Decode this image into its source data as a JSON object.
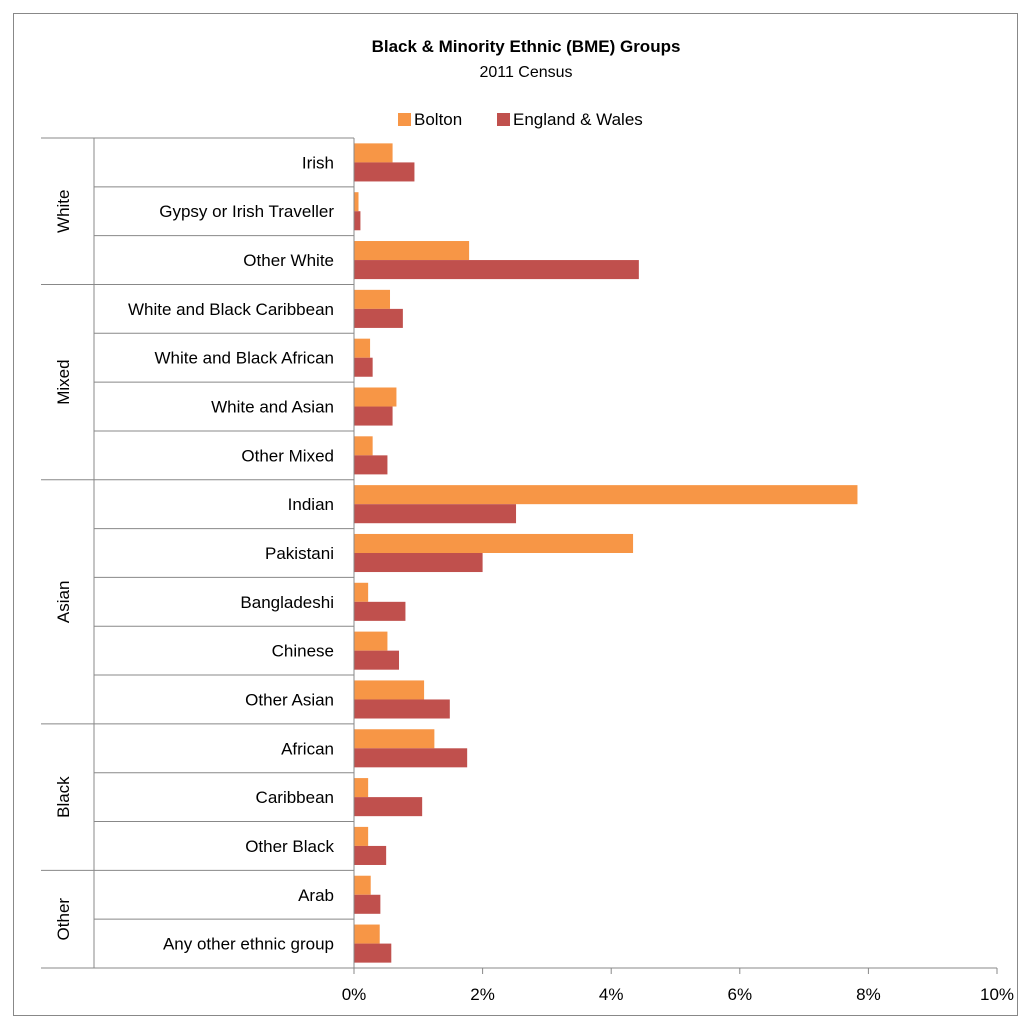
{
  "chart_data": {
    "type": "bar",
    "orientation": "horizontal",
    "title": "Black & Minority Ethnic (BME) Groups",
    "subtitle": "2011 Census",
    "legend_position": "top-center",
    "grid": false,
    "xlim": [
      0,
      10
    ],
    "x_ticks": [
      {
        "value": 0,
        "label": "0%"
      },
      {
        "value": 2,
        "label": "2%"
      },
      {
        "value": 4,
        "label": "4%"
      },
      {
        "value": 6,
        "label": "6%"
      },
      {
        "value": 8,
        "label": "8%"
      },
      {
        "value": 10,
        "label": "10%"
      }
    ],
    "groups": [
      {
        "name": "White",
        "categories": [
          "Irish",
          "Gypsy or Irish Traveller",
          "Other White"
        ]
      },
      {
        "name": "Mixed",
        "categories": [
          "White and Black Caribbean",
          "White and Black African",
          "White and Asian",
          "Other Mixed"
        ]
      },
      {
        "name": "Asian",
        "categories": [
          "Indian",
          "Pakistani",
          "Bangladeshi",
          "Chinese",
          "Other Asian"
        ]
      },
      {
        "name": "Black",
        "categories": [
          "African",
          "Caribbean",
          "Other Black"
        ]
      },
      {
        "name": "Other",
        "categories": [
          "Arab",
          "Any other ethnic group"
        ]
      }
    ],
    "categories": [
      "Irish",
      "Gypsy or Irish Traveller",
      "Other White",
      "White and Black Caribbean",
      "White and Black African",
      "White and Asian",
      "Other Mixed",
      "Indian",
      "Pakistani",
      "Bangladeshi",
      "Chinese",
      "Other Asian",
      "African",
      "Caribbean",
      "Other Black",
      "Arab",
      "Any other ethnic group"
    ],
    "series": [
      {
        "name": "Bolton",
        "color": "#F79646",
        "values": [
          0.6,
          0.07,
          1.79,
          0.56,
          0.25,
          0.66,
          0.29,
          7.83,
          4.34,
          0.22,
          0.52,
          1.09,
          1.25,
          0.22,
          0.22,
          0.26,
          0.4
        ]
      },
      {
        "name": "England & Wales",
        "color": "#C0504D",
        "values": [
          0.94,
          0.1,
          4.43,
          0.76,
          0.29,
          0.6,
          0.52,
          2.52,
          2.0,
          0.8,
          0.7,
          1.49,
          1.76,
          1.06,
          0.5,
          0.41,
          0.58
        ]
      }
    ]
  }
}
